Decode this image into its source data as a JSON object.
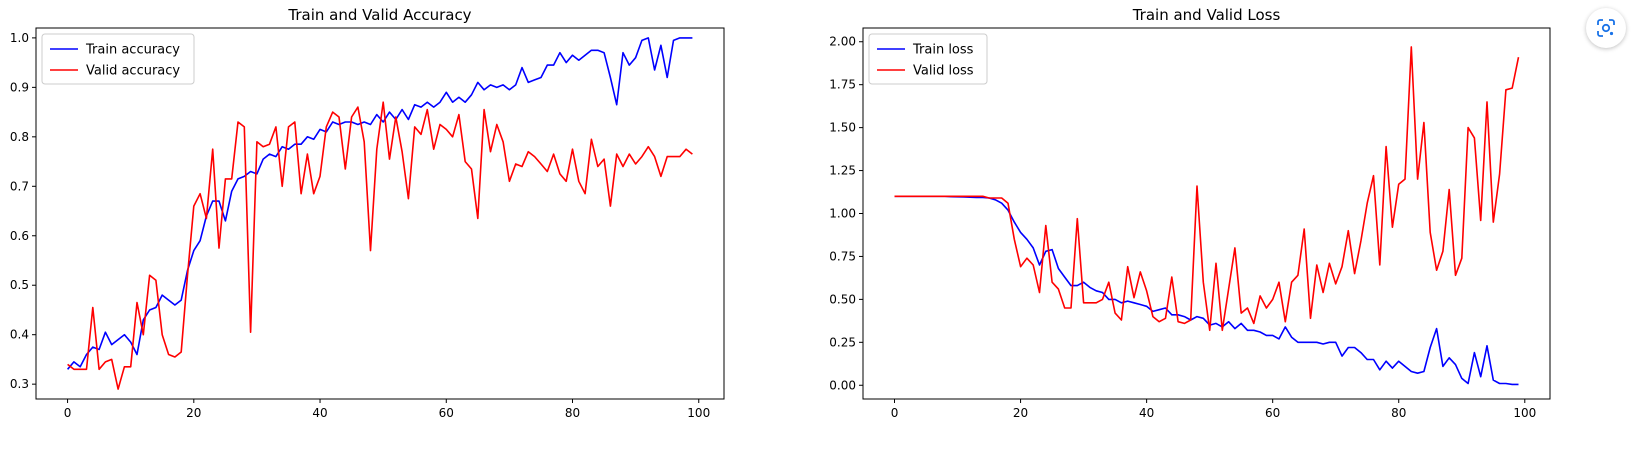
{
  "chart_data": [
    {
      "type": "line",
      "title": "Train and Valid Accuracy",
      "xlabel": "",
      "ylabel": "",
      "xlim": [
        -5,
        104
      ],
      "ylim": [
        0.27,
        1.02
      ],
      "xticks": [
        0,
        20,
        40,
        60,
        80,
        100
      ],
      "yticks": [
        0.3,
        0.4,
        0.5,
        0.6,
        0.7,
        0.8,
        0.9,
        1.0
      ],
      "ytick_labels": [
        "0.3",
        "0.4",
        "0.5",
        "0.6",
        "0.7",
        "0.8",
        "0.9",
        "1.0"
      ],
      "legend_position": "top-left",
      "grid": false,
      "x": [
        0,
        1,
        2,
        3,
        4,
        5,
        6,
        7,
        8,
        9,
        10,
        11,
        12,
        13,
        14,
        15,
        16,
        17,
        18,
        19,
        20,
        21,
        22,
        23,
        24,
        25,
        26,
        27,
        28,
        29,
        30,
        31,
        32,
        33,
        34,
        35,
        36,
        37,
        38,
        39,
        40,
        41,
        42,
        43,
        44,
        45,
        46,
        47,
        48,
        49,
        50,
        51,
        52,
        53,
        54,
        55,
        56,
        57,
        58,
        59,
        60,
        61,
        62,
        63,
        64,
        65,
        66,
        67,
        68,
        69,
        70,
        71,
        72,
        73,
        74,
        75,
        76,
        77,
        78,
        79,
        80,
        81,
        82,
        83,
        84,
        85,
        86,
        87,
        88,
        89,
        90,
        91,
        92,
        93,
        94,
        95,
        96,
        97,
        98,
        99
      ],
      "series": [
        {
          "name": "Train accuracy",
          "color": "#0000ff",
          "values": [
            0.33,
            0.345,
            0.335,
            0.36,
            0.375,
            0.37,
            0.405,
            0.38,
            0.39,
            0.4,
            0.385,
            0.36,
            0.43,
            0.45,
            0.455,
            0.48,
            0.47,
            0.46,
            0.47,
            0.53,
            0.57,
            0.59,
            0.64,
            0.67,
            0.67,
            0.63,
            0.69,
            0.715,
            0.72,
            0.73,
            0.725,
            0.755,
            0.765,
            0.76,
            0.78,
            0.775,
            0.785,
            0.785,
            0.8,
            0.795,
            0.815,
            0.81,
            0.83,
            0.825,
            0.83,
            0.83,
            0.825,
            0.83,
            0.825,
            0.845,
            0.83,
            0.85,
            0.835,
            0.855,
            0.835,
            0.865,
            0.86,
            0.87,
            0.86,
            0.87,
            0.89,
            0.87,
            0.88,
            0.87,
            0.885,
            0.91,
            0.895,
            0.905,
            0.9,
            0.905,
            0.895,
            0.905,
            0.94,
            0.91,
            0.915,
            0.92,
            0.945,
            0.945,
            0.97,
            0.95,
            0.965,
            0.955,
            0.965,
            0.975,
            0.975,
            0.97,
            0.92,
            0.865,
            0.97,
            0.945,
            0.96,
            0.995,
            1.0,
            0.935,
            0.985,
            0.92,
            0.995,
            1.0,
            1.0,
            1.0
          ]
        },
        {
          "name": "Valid accuracy",
          "color": "#ff0000",
          "values": [
            0.34,
            0.33,
            0.33,
            0.33,
            0.455,
            0.33,
            0.345,
            0.35,
            0.29,
            0.335,
            0.335,
            0.465,
            0.4,
            0.52,
            0.51,
            0.4,
            0.36,
            0.355,
            0.365,
            0.52,
            0.66,
            0.685,
            0.635,
            0.775,
            0.575,
            0.715,
            0.715,
            0.83,
            0.82,
            0.405,
            0.79,
            0.78,
            0.785,
            0.82,
            0.7,
            0.82,
            0.83,
            0.685,
            0.765,
            0.685,
            0.72,
            0.82,
            0.85,
            0.84,
            0.735,
            0.84,
            0.86,
            0.79,
            0.57,
            0.775,
            0.87,
            0.755,
            0.84,
            0.77,
            0.675,
            0.82,
            0.805,
            0.855,
            0.775,
            0.825,
            0.815,
            0.8,
            0.845,
            0.75,
            0.735,
            0.635,
            0.855,
            0.77,
            0.825,
            0.79,
            0.71,
            0.745,
            0.74,
            0.77,
            0.76,
            0.745,
            0.73,
            0.765,
            0.725,
            0.71,
            0.775,
            0.71,
            0.685,
            0.795,
            0.74,
            0.755,
            0.66,
            0.765,
            0.74,
            0.765,
            0.745,
            0.76,
            0.78,
            0.76,
            0.72,
            0.76,
            0.76,
            0.76,
            0.775,
            0.765
          ]
        }
      ]
    },
    {
      "type": "line",
      "title": "Train and Valid Loss",
      "xlabel": "",
      "ylabel": "",
      "xlim": [
        -5,
        104
      ],
      "ylim": [
        -0.08,
        2.08
      ],
      "xticks": [
        0,
        20,
        40,
        60,
        80,
        100
      ],
      "yticks": [
        0,
        0.25,
        0.5,
        0.75,
        1.0,
        1.25,
        1.5,
        1.75,
        2.0
      ],
      "ytick_labels": [
        "0.00",
        "0.25",
        "0.50",
        "0.75",
        "1.00",
        "1.25",
        "1.50",
        "1.75",
        "2.00"
      ],
      "legend_position": "top-left",
      "grid": false,
      "x": [
        0,
        1,
        2,
        3,
        4,
        5,
        6,
        7,
        8,
        9,
        10,
        11,
        12,
        13,
        14,
        15,
        16,
        17,
        18,
        19,
        20,
        21,
        22,
        23,
        24,
        25,
        26,
        27,
        28,
        29,
        30,
        31,
        32,
        33,
        34,
        35,
        36,
        37,
        38,
        39,
        40,
        41,
        42,
        43,
        44,
        45,
        46,
        47,
        48,
        49,
        50,
        51,
        52,
        53,
        54,
        55,
        56,
        57,
        58,
        59,
        60,
        61,
        62,
        63,
        64,
        65,
        66,
        67,
        68,
        69,
        70,
        71,
        72,
        73,
        74,
        75,
        76,
        77,
        78,
        79,
        80,
        81,
        82,
        83,
        84,
        85,
        86,
        87,
        88,
        89,
        90,
        91,
        92,
        93,
        94,
        95,
        96,
        97,
        98,
        99
      ],
      "series": [
        {
          "name": "Train loss",
          "color": "#0000ff",
          "values": [
            1.1,
            1.1,
            1.1,
            1.1,
            1.1,
            1.1,
            1.1,
            1.1,
            1.1,
            1.098,
            1.097,
            1.096,
            1.095,
            1.094,
            1.093,
            1.09,
            1.08,
            1.06,
            1.02,
            0.95,
            0.89,
            0.85,
            0.8,
            0.7,
            0.78,
            0.79,
            0.68,
            0.63,
            0.58,
            0.58,
            0.6,
            0.57,
            0.55,
            0.54,
            0.5,
            0.5,
            0.48,
            0.49,
            0.48,
            0.47,
            0.46,
            0.43,
            0.44,
            0.45,
            0.41,
            0.41,
            0.4,
            0.38,
            0.4,
            0.39,
            0.35,
            0.36,
            0.34,
            0.37,
            0.33,
            0.36,
            0.32,
            0.32,
            0.31,
            0.29,
            0.29,
            0.27,
            0.34,
            0.28,
            0.25,
            0.25,
            0.25,
            0.25,
            0.24,
            0.25,
            0.25,
            0.17,
            0.22,
            0.22,
            0.19,
            0.15,
            0.15,
            0.09,
            0.14,
            0.1,
            0.14,
            0.11,
            0.08,
            0.07,
            0.08,
            0.22,
            0.33,
            0.11,
            0.16,
            0.12,
            0.04,
            0.01,
            0.19,
            0.05,
            0.23,
            0.03,
            0.01,
            0.01,
            0.005,
            0.005
          ]
        },
        {
          "name": "Valid loss",
          "color": "#ff0000",
          "values": [
            1.1,
            1.1,
            1.1,
            1.1,
            1.1,
            1.1,
            1.1,
            1.1,
            1.1,
            1.1,
            1.1,
            1.1,
            1.1,
            1.1,
            1.1,
            1.09,
            1.09,
            1.09,
            1.06,
            0.85,
            0.69,
            0.74,
            0.7,
            0.54,
            0.93,
            0.6,
            0.56,
            0.45,
            0.45,
            0.97,
            0.48,
            0.48,
            0.48,
            0.5,
            0.6,
            0.42,
            0.38,
            0.69,
            0.51,
            0.66,
            0.55,
            0.4,
            0.37,
            0.39,
            0.63,
            0.37,
            0.36,
            0.38,
            1.16,
            0.6,
            0.32,
            0.71,
            0.32,
            0.56,
            0.8,
            0.42,
            0.45,
            0.36,
            0.52,
            0.45,
            0.5,
            0.6,
            0.37,
            0.6,
            0.64,
            0.91,
            0.39,
            0.7,
            0.54,
            0.71,
            0.59,
            0.69,
            0.9,
            0.65,
            0.84,
            1.06,
            1.22,
            0.7,
            1.39,
            0.92,
            1.17,
            1.2,
            1.97,
            1.2,
            1.53,
            0.89,
            0.67,
            0.78,
            1.14,
            0.64,
            0.74,
            1.5,
            1.44,
            0.96,
            1.65,
            0.95,
            1.23,
            1.72,
            1.73,
            1.91
          ]
        }
      ]
    }
  ],
  "ui": {
    "lens_icon": "google-lens-icon",
    "lens_color": "#1a73e8"
  }
}
